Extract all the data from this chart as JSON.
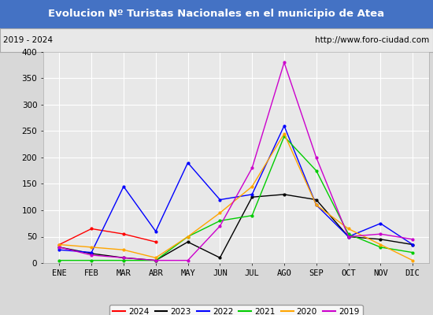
{
  "title": "Evolucion Nº Turistas Nacionales en el municipio de Atea",
  "subtitle_left": "2019 - 2024",
  "subtitle_right": "http://www.foro-ciudad.com",
  "title_bg": "#4472c4",
  "title_color": "#ffffff",
  "months": [
    "ENE",
    "FEB",
    "MAR",
    "ABR",
    "MAY",
    "JUN",
    "JUL",
    "AGO",
    "SEP",
    "OCT",
    "NOV",
    "DIC"
  ],
  "ylim": [
    0,
    400
  ],
  "yticks": [
    0,
    50,
    100,
    150,
    200,
    250,
    300,
    350,
    400
  ],
  "series": {
    "2024": {
      "color": "#ff0000",
      "data": [
        35,
        65,
        55,
        40,
        null,
        null,
        null,
        null,
        null,
        null,
        null,
        null
      ]
    },
    "2023": {
      "color": "#000000",
      "data": [
        30,
        18,
        10,
        5,
        40,
        10,
        125,
        130,
        120,
        50,
        45,
        35
      ]
    },
    "2022": {
      "color": "#0000ff",
      "data": [
        25,
        20,
        145,
        60,
        190,
        120,
        130,
        260,
        110,
        50,
        75,
        35
      ]
    },
    "2021": {
      "color": "#00cc00",
      "data": [
        5,
        5,
        5,
        5,
        50,
        80,
        90,
        240,
        175,
        55,
        30,
        20
      ]
    },
    "2020": {
      "color": "#ffa500",
      "data": [
        35,
        30,
        25,
        10,
        50,
        95,
        145,
        245,
        110,
        65,
        35,
        5
      ]
    },
    "2019": {
      "color": "#cc00cc",
      "data": [
        30,
        15,
        10,
        5,
        5,
        70,
        180,
        380,
        200,
        50,
        55,
        45
      ]
    }
  },
  "legend_order": [
    "2024",
    "2023",
    "2022",
    "2021",
    "2020",
    "2019"
  ],
  "outer_bg": "#d8d8d8",
  "bg_color": "#e8e8e8",
  "plot_bg": "#e8e8e8",
  "grid_color": "#ffffff",
  "tick_font_size": 7.5,
  "title_fontsize": 9.5,
  "sub_fontsize": 7.5
}
